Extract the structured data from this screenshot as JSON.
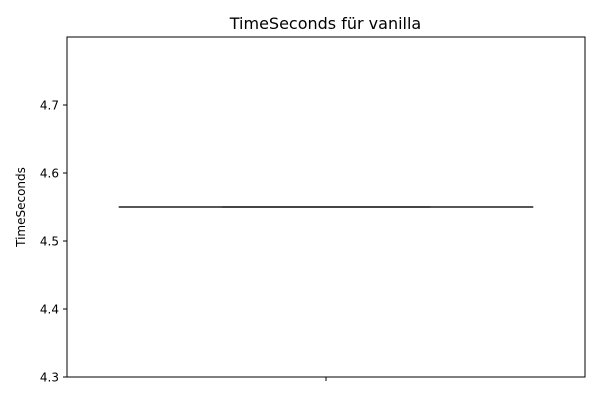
{
  "chart_data": {
    "type": "box",
    "title": "TimeSeconds für vanilla",
    "xlabel": "",
    "ylabel": "TimeSeconds",
    "ylim": [
      4.3,
      4.8
    ],
    "yticks": [
      "4.3",
      "4.4",
      "4.5",
      "4.6",
      "4.7"
    ],
    "categories": [
      ""
    ],
    "boxes": [
      {
        "min": 4.55,
        "q1": 4.55,
        "median": 4.55,
        "q3": 4.55,
        "max": 4.55
      }
    ],
    "grid": false,
    "colors": {
      "box_line": "#3f3f3f",
      "axis": "#000000"
    }
  }
}
